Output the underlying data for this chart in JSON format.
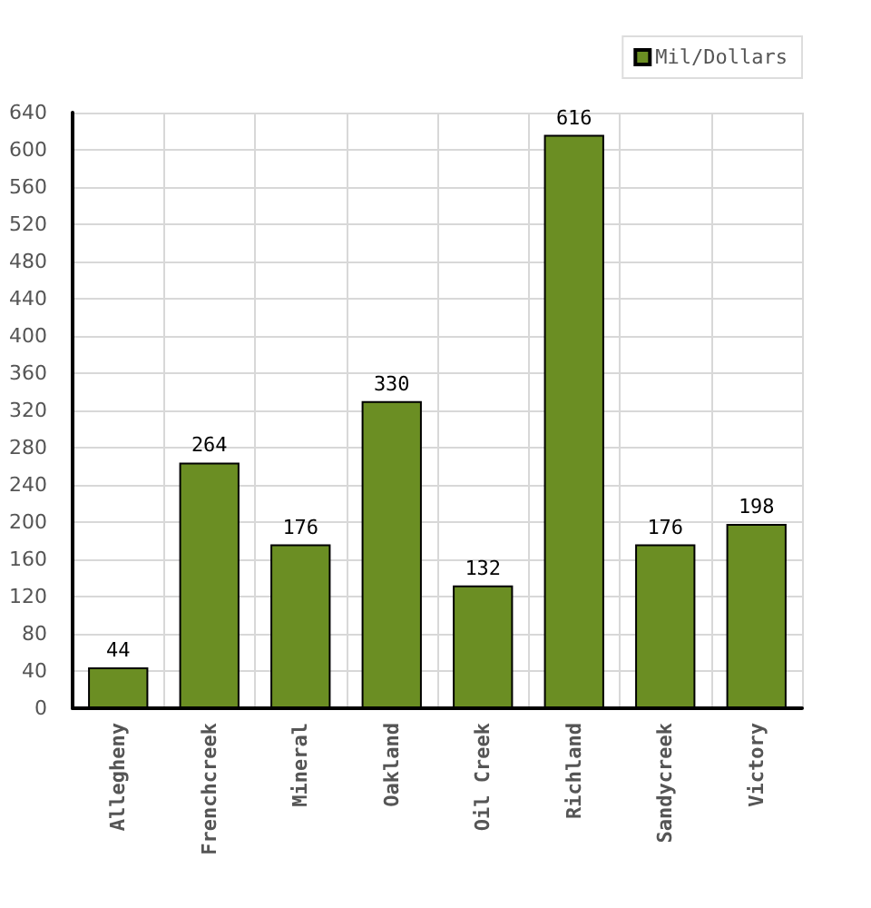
{
  "chart_data": {
    "type": "bar",
    "categories": [
      "Allegheny",
      "Frenchcreek",
      "Mineral",
      "Oakland",
      "Oil Creek",
      "Richland",
      "Sandycreek",
      "Victory"
    ],
    "series": [
      {
        "name": "Mil/Dollars",
        "color": "#6b8e23",
        "values": [
          44,
          264,
          176,
          330,
          132,
          616,
          176,
          198
        ]
      }
    ],
    "ylim": [
      0,
      640
    ],
    "yticks": [
      0,
      40,
      80,
      120,
      160,
      200,
      240,
      280,
      320,
      360,
      400,
      440,
      480,
      520,
      560,
      600,
      640
    ],
    "grid": true,
    "legend": "top right",
    "data_labels": true
  }
}
